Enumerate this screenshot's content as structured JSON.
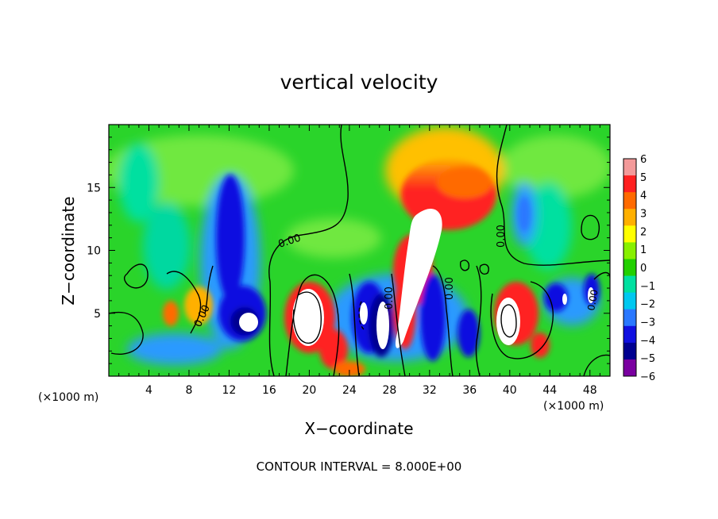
{
  "chart_data": {
    "type": "heatmap",
    "title": "vertical velocity",
    "xlabel": "X−coordinate",
    "ylabel": "Z−coordinate",
    "x_units": "(×1000 m)",
    "z_units": "(×1000 m)",
    "xlim": [
      0,
      50
    ],
    "ylim": [
      0,
      20
    ],
    "x_ticks": [
      4,
      8,
      12,
      16,
      20,
      24,
      28,
      32,
      36,
      40,
      44,
      48
    ],
    "y_ticks": [
      5,
      10,
      15
    ],
    "colorbar": {
      "range": [
        -6,
        6
      ],
      "ticks": [
        "6",
        "5",
        "4",
        "3",
        "2",
        "1",
        "0",
        "−1",
        "−2",
        "−3",
        "−4",
        "−5",
        "−6"
      ],
      "colors": [
        "#f39a9a",
        "#ff2020",
        "#ff6a00",
        "#ffb000",
        "#ffff00",
        "#88f000",
        "#22d000",
        "#00e0a0",
        "#00c8f0",
        "#2a78ff",
        "#1010e0",
        "#000090",
        "#7a00a0"
      ]
    },
    "contour_interval": "CONTOUR INTERVAL = 8.000E+00",
    "contour_labels": [
      "0.00",
      "0.00",
      "0.00",
      "0.00",
      "0.00",
      "0.00"
    ],
    "features": [
      {
        "name": "upper-updraft-plume",
        "x": 30.5,
        "z": 12.5,
        "value": 6
      },
      {
        "name": "updraft-core-20",
        "x": 20,
        "z": 4.5,
        "value": 6
      },
      {
        "name": "updraft-core-40",
        "x": 40,
        "z": 4.5,
        "value": 6
      },
      {
        "name": "downdraft-column-12",
        "x": 12,
        "z": 9,
        "value": -5
      },
      {
        "name": "downdraft-26",
        "x": 26,
        "z": 4.5,
        "value": -6
      },
      {
        "name": "downdraft-33",
        "x": 33,
        "z": 4,
        "value": -5
      },
      {
        "name": "downdraft-upper-42",
        "x": 41.5,
        "z": 12.5,
        "value": -3
      }
    ]
  }
}
